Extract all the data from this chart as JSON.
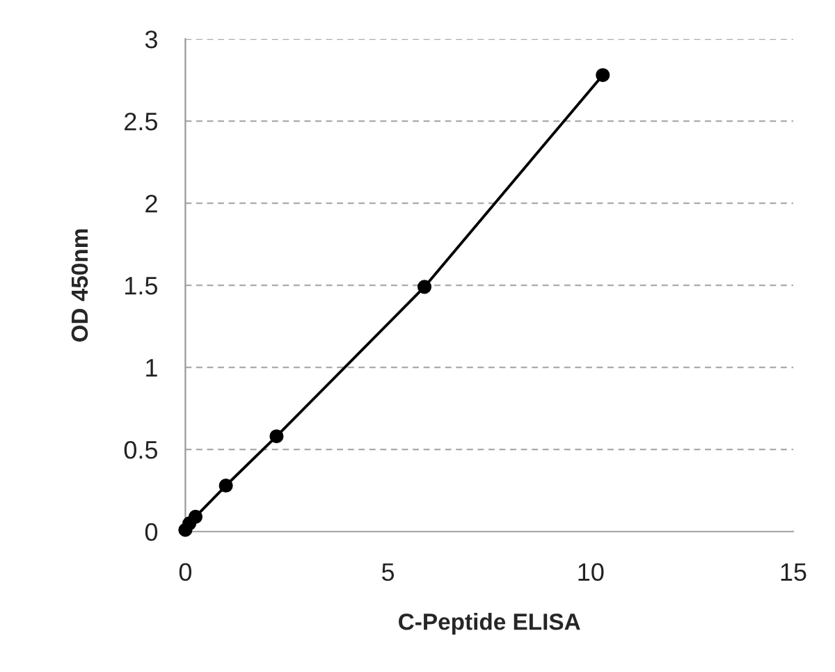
{
  "chart_data": {
    "type": "line",
    "xlabel": "C-Peptide ELISA",
    "ylabel": "OD 450nm",
    "series": [
      {
        "color": "#000000",
        "x": [
          0,
          0.1,
          0.25,
          1,
          2.25,
          5.9,
          10.3
        ],
        "values": [
          0.01,
          0.05,
          0.09,
          0.28,
          0.58,
          1.49,
          2.78
        ]
      }
    ],
    "xlim": [
      0,
      15
    ],
    "xticks": [
      0,
      5,
      10,
      15
    ],
    "ylim": [
      0,
      3
    ],
    "yticks": [
      0,
      0.5,
      1,
      1.5,
      2,
      2.5,
      3
    ],
    "grid": "y",
    "marker": "circle",
    "line_style": "solid"
  }
}
